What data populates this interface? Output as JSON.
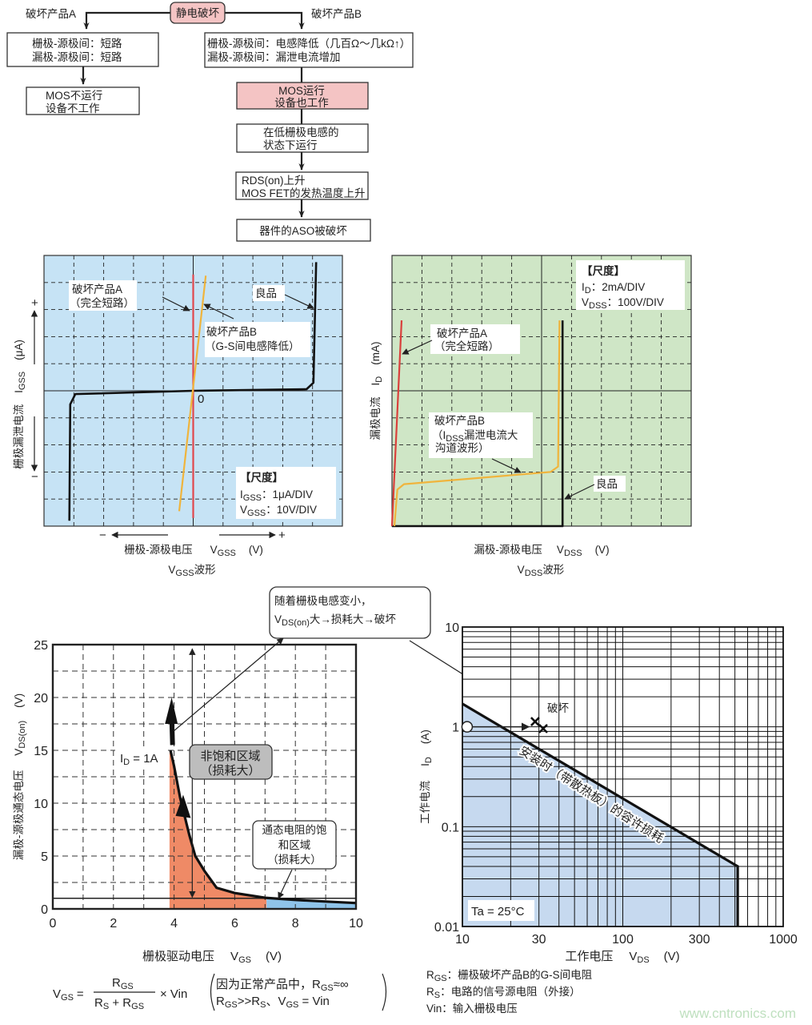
{
  "flowchart": {
    "root": "静电破坏",
    "branch_a_label": "破坏产品A",
    "branch_b_label": "破坏产品B",
    "a_box1": [
      "栅极-源极间：短路",
      "漏极-源极间：短路"
    ],
    "a_box2": [
      "MOS不运行",
      "设备不工作"
    ],
    "b_box1": [
      "栅极-源极间：电感降低（几百Ω～几kΩ↑）",
      "漏极-源极间：漏泄电流增加"
    ],
    "b_box2": [
      "MOS运行",
      "设备也工作"
    ],
    "b_box3": [
      "在低栅极电感的",
      "状态下运行"
    ],
    "b_box4": [
      "RDS(on)上升",
      "MOS FET的发热温度上升"
    ],
    "b_box5": "器件的ASO被破坏",
    "colors": {
      "highlight": "#f4c4c4"
    }
  },
  "chart_data": [
    {
      "type": "line",
      "caption": {
        "main": "V",
        "sub": "GSS",
        "rest": "波形"
      },
      "xlabel": {
        "text": "栅极-源极电压",
        "var": "V",
        "sub": "GSS",
        "unit": "(V)"
      },
      "ylabel": {
        "text": "栅极漏泄电流",
        "var": "I",
        "sub": "GSS",
        "unit": "(μA)"
      },
      "plus": "+",
      "minus": "−",
      "origin_label": "0",
      "xlim": [
        -50,
        50
      ],
      "ylim": [
        -5,
        5
      ],
      "grid": "dashed",
      "background": "#c6e3f5",
      "scale": {
        "title": "【尺度】",
        "lines": [
          {
            "main": "I",
            "sub": "GSS",
            "rest": "：1μA/DIV"
          },
          {
            "main": "V",
            "sub": "GSS",
            "rest": "：10V/DIV"
          }
        ]
      },
      "series": [
        {
          "name": "良品",
          "color": "#111111",
          "points": [
            [
              -41.5,
              -4.8
            ],
            [
              -41.2,
              -0.5
            ],
            [
              -39.5,
              -0.12
            ],
            [
              0,
              0
            ],
            [
              38,
              0.06
            ],
            [
              40.3,
              0.3
            ],
            [
              41.2,
              4.75
            ]
          ]
        },
        {
          "name": "破坏产品A",
          "note": "（完全短路）",
          "color": "#e0474c",
          "points": [
            [
              0,
              -4.7
            ],
            [
              0,
              4.3
            ]
          ]
        },
        {
          "name": "破坏产品B",
          "note": "（G-S间电感降低）",
          "color": "#f0b43c",
          "points": [
            [
              -4.7,
              -4.45
            ],
            [
              4.2,
              4.25
            ]
          ]
        }
      ]
    },
    {
      "type": "line",
      "caption": {
        "main": "V",
        "sub": "DSS",
        "rest": "波形"
      },
      "xlabel": {
        "text": "漏极-源极电压",
        "var": "V",
        "sub": "DSS",
        "unit": "(V)"
      },
      "ylabel": {
        "text": "漏极电流",
        "var": "I",
        "sub": "D",
        "unit": "(mA)"
      },
      "xlim": [
        0,
        1000
      ],
      "ylim": [
        0,
        20
      ],
      "grid": "dashed",
      "background": "#cfe6c6",
      "scale": {
        "title": "【尺度】",
        "lines": [
          {
            "main": "I",
            "sub": "D",
            "rest": "：2mA/DIV"
          },
          {
            "main": "V",
            "sub": "DSS",
            "rest": "：100V/DIV"
          }
        ]
      },
      "series": [
        {
          "name": "良品",
          "color": "#111111",
          "points": [
            [
              0,
              0
            ],
            [
              570,
              0
            ],
            [
              570,
              15.2
            ]
          ]
        },
        {
          "name": "破坏产品A",
          "note": "（完全短路）",
          "color": "#d9403c",
          "points": [
            [
              0,
              0
            ],
            [
              32,
              15.2
            ]
          ]
        },
        {
          "name": "破坏产品B",
          "note_main": "I",
          "note_sub": "DSS",
          "note_rest": "漏泄电流大",
          "note2": "沟道波形",
          "color": "#f0b43c",
          "points": [
            [
              8,
              0
            ],
            [
              18,
              2.7
            ],
            [
              40,
              3.1
            ],
            [
              530,
              4.0
            ],
            [
              555,
              4.4
            ],
            [
              560,
              15.2
            ]
          ]
        }
      ]
    },
    {
      "type": "line",
      "xlabel": {
        "text": "栅极驱动电压",
        "var": "V",
        "sub": "GS",
        "unit": "(V)"
      },
      "ylabel": {
        "text": "漏极-源极通态电压",
        "var": "V",
        "sub": "DS(on)",
        "unit": "(V)"
      },
      "xlim": [
        0,
        10
      ],
      "ylim": [
        0,
        25
      ],
      "xticks": [
        0,
        2,
        4,
        6,
        8,
        10
      ],
      "yticks": [
        0,
        5,
        10,
        15,
        20,
        25
      ],
      "grid": "dashed",
      "series": [
        {
          "name": "",
          "label": {
            "main": "I",
            "sub": "D",
            "rest": " = 1A"
          },
          "color": "#111111",
          "points": [
            [
              3.88,
              15
            ],
            [
              4.0,
              13.5
            ],
            [
              4.2,
              10.5
            ],
            [
              4.5,
              7
            ],
            [
              4.7,
              5
            ],
            [
              5.0,
              3.6
            ],
            [
              5.4,
              2.0
            ],
            [
              6,
              1.5
            ],
            [
              7,
              1.05
            ],
            [
              8,
              0.85
            ],
            [
              9,
              0.7
            ],
            [
              10,
              0.55
            ]
          ]
        }
      ],
      "reference_line_y": 1,
      "regions": [
        {
          "label": [
            "非饱和区域",
            "（损耗大）"
          ],
          "x_range": [
            3.85,
            7.05
          ],
          "color": "#ef8a66",
          "box_color": "#bdbdbd"
        },
        {
          "label": [
            "通态电阻的饱",
            "和区域",
            "（损耗大）"
          ],
          "x_range": [
            7.05,
            10
          ],
          "color": "#8fc4ea"
        }
      ],
      "callout": {
        "line1": "随着栅极电感变小，",
        "var": "V",
        "sub": "DS(on)",
        "rest": "大→损耗大→破坏"
      },
      "formula": {
        "lhs_main": "V",
        "lhs_sub": "GS",
        "eq": "=",
        "num_main": "R",
        "num_sub": "GS",
        "den_a": "R",
        "den_a_sub": "S",
        "den_plus": " + ",
        "den_b": "R",
        "den_b_sub": "GS",
        "times": "× Vin",
        "note1_a": "因为正常产品中，R",
        "note1_sub": "GS",
        "note1_b": "≈∞",
        "note2_a": "R",
        "note2_a_sub": "GS",
        "note2_b": ">>R",
        "note2_b_sub": "S",
        "note2_c": "、V",
        "note2_c_sub": "GS",
        "note2_d": " = Vin"
      }
    },
    {
      "type": "line",
      "xscale": "log",
      "yscale": "log",
      "xlabel": {
        "text": "工作电压",
        "var": "V",
        "sub": "DS",
        "unit": "(V)"
      },
      "ylabel": {
        "text": "工作电流",
        "var": "I",
        "sub": "D",
        "unit": "(A)"
      },
      "xlim": [
        10,
        1000
      ],
      "ylim": [
        0.01,
        10
      ],
      "xticks": [
        10,
        30,
        100,
        300,
        1000
      ],
      "yticks": [
        0.01,
        0.1,
        1,
        10
      ],
      "grid": "solid",
      "series": [
        {
          "name": "安装时（带散热板）的容许损耗",
          "color": "#111111",
          "fill": "#c6d9ef",
          "points": [
            [
              10,
              1.7
            ],
            [
              520,
              0.04
            ],
            [
              520,
              0.01
            ]
          ]
        }
      ],
      "operating_point": [
        10.7,
        1
      ],
      "failure_points": [
        [
          28.4,
          1.13
        ],
        [
          31.9,
          0.96
        ]
      ],
      "failure_label": "破坏",
      "condition": "Ta = 25°C"
    }
  ],
  "notes": [
    {
      "main": "R",
      "sub": "GS",
      "rest": "：栅极破坏产品B的G-S间电阻"
    },
    {
      "main": "R",
      "sub": "S",
      "rest": "：电路的信号源电阻（外接）"
    },
    {
      "main": "Vin",
      "sub": "",
      "rest": "：输入栅极电压"
    }
  ],
  "watermark": "www.cntronics.com"
}
